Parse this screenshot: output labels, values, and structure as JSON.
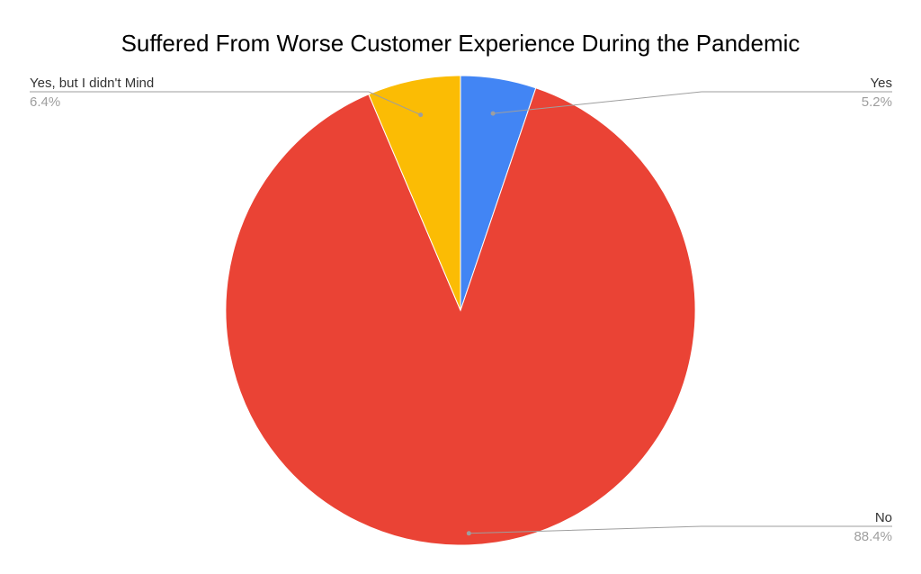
{
  "chart_data": {
    "type": "pie",
    "title": "Suffered From Worse Customer Experience During the Pandemic",
    "slices": [
      {
        "label": "Yes",
        "value": 5.2,
        "percent_label": "5.2%",
        "color": "#4285f4"
      },
      {
        "label": "No",
        "value": 88.4,
        "percent_label": "88.4%",
        "color": "#ea4335"
      },
      {
        "label": "Yes, but I didn't Mind",
        "value": 6.4,
        "percent_label": "6.4%",
        "color": "#fbbc04"
      }
    ],
    "start_angle_deg": 0,
    "direction": "clockwise",
    "legend": "labels with leader lines"
  }
}
